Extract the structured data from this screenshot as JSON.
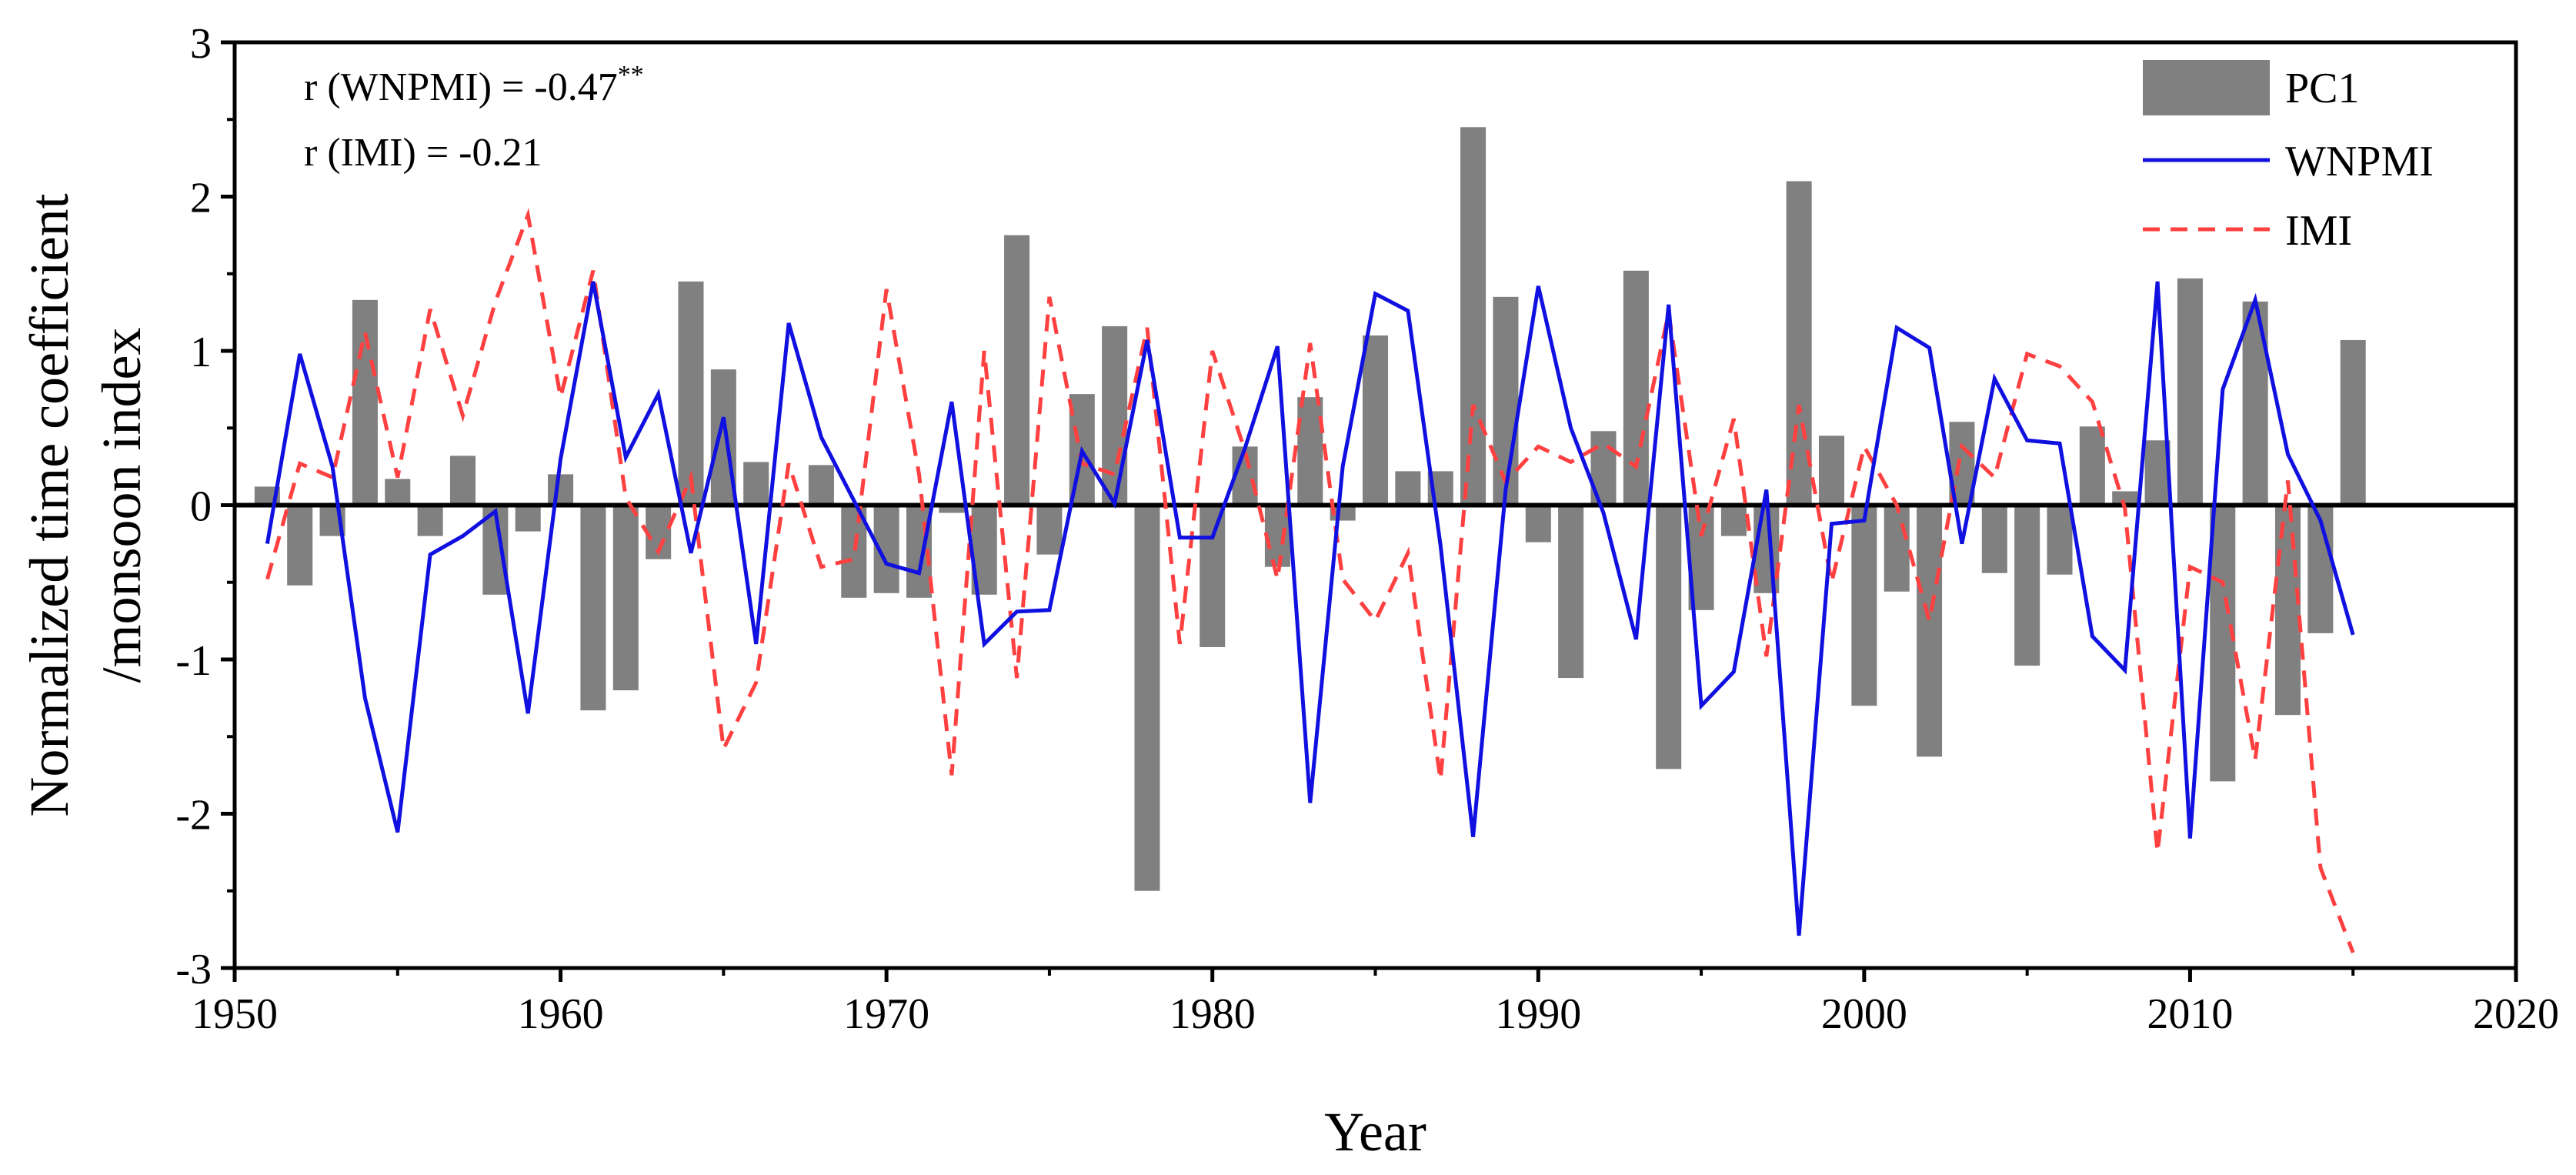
{
  "chart_data": {
    "type": "bar+line",
    "xlabel": "Year",
    "ylabel_line1": "Normalized time coefficient",
    "ylabel_line2": "/monsoon index",
    "xlim": [
      1950,
      2020
    ],
    "ylim": [
      -3,
      3
    ],
    "xticks": [
      1950,
      1960,
      1970,
      1980,
      1990,
      2000,
      2010,
      2020
    ],
    "yticks": [
      -3,
      -2,
      -1,
      0,
      1,
      2,
      3
    ],
    "annotations": [
      {
        "text": "r (WNPMI) = -0.47",
        "sup": "**"
      },
      {
        "text": "r (IMI) = -0.21",
        "sup": ""
      }
    ],
    "legend": [
      "PC1",
      "WNPMI",
      "IMI"
    ],
    "colors": {
      "PC1": "#808080",
      "WNPMI": "#1010e0",
      "IMI": "#ff4040"
    },
    "x": [
      1951,
      1952,
      1953,
      1954,
      1955,
      1956,
      1957,
      1958,
      1959,
      1960,
      1961,
      1962,
      1963,
      1964,
      1965,
      1966,
      1967,
      1968,
      1969,
      1970,
      1971,
      1972,
      1973,
      1974,
      1975,
      1976,
      1977,
      1978,
      1979,
      1980,
      1981,
      1982,
      1983,
      1984,
      1985,
      1986,
      1987,
      1988,
      1989,
      1990,
      1991,
      1992,
      1993,
      1994,
      1995,
      1996,
      1997,
      1998,
      1999,
      2000,
      2001,
      2002,
      2003,
      2004,
      2005,
      2006,
      2007,
      2008,
      2009,
      2010,
      2011,
      2012,
      2013,
      2014,
      2015
    ],
    "series": [
      {
        "name": "PC1",
        "type": "bar",
        "values": [
          0.12,
          -0.52,
          -0.2,
          1.33,
          0.17,
          -0.2,
          0.32,
          -0.58,
          -0.17,
          0.2,
          -1.33,
          -1.2,
          -0.35,
          1.45,
          0.88,
          0.28,
          0.0,
          0.26,
          -0.6,
          -0.57,
          -0.6,
          -0.05,
          -0.58,
          1.75,
          -0.32,
          0.72,
          1.16,
          -2.5,
          0.0,
          -0.92,
          0.38,
          -0.4,
          0.7,
          -0.1,
          1.1,
          0.22,
          0.22,
          2.45,
          1.35,
          -0.24,
          -1.12,
          0.48,
          1.52,
          -1.71,
          -0.68,
          -0.2,
          -0.57,
          2.1,
          0.45,
          -1.3,
          -0.56,
          -1.63,
          0.54,
          -0.44,
          -1.04,
          -0.45,
          0.51,
          0.09,
          0.42,
          1.47,
          -1.79,
          1.32,
          -1.36,
          -0.83,
          1.07
        ]
      },
      {
        "name": "WNPMI",
        "type": "line",
        "values": [
          -0.25,
          0.98,
          0.25,
          -1.25,
          -2.12,
          -0.32,
          -0.2,
          -0.04,
          -1.35,
          0.3,
          1.45,
          0.31,
          0.72,
          -0.31,
          0.57,
          -0.9,
          1.18,
          0.44,
          0.03,
          -0.38,
          -0.44,
          0.67,
          -0.9,
          -0.69,
          -0.68,
          0.35,
          0.01,
          1.07,
          -0.21,
          -0.21,
          0.37,
          1.03,
          -1.93,
          0.25,
          1.37,
          1.26,
          -0.26,
          -2.15,
          0.1,
          1.42,
          0.5,
          -0.05,
          -0.87,
          1.3,
          -1.3,
          -1.08,
          0.1,
          -2.79,
          -0.12,
          -0.1,
          1.15,
          1.02,
          -0.25,
          0.82,
          0.42,
          0.4,
          -0.85,
          -1.07,
          1.45,
          -2.16,
          0.75,
          1.33,
          0.33,
          -0.1,
          -0.84
        ]
      },
      {
        "name": "IMI",
        "type": "line",
        "values": [
          -0.48,
          0.27,
          0.18,
          1.12,
          0.18,
          1.27,
          0.58,
          1.32,
          1.88,
          0.7,
          1.52,
          0.05,
          -0.3,
          0.18,
          -1.58,
          -1.15,
          0.27,
          -0.4,
          -0.35,
          1.4,
          0.2,
          -1.75,
          1.0,
          -1.12,
          1.35,
          0.27,
          0.2,
          1.15,
          -0.9,
          1.0,
          0.35,
          -0.48,
          1.05,
          -0.48,
          -0.75,
          -0.31,
          -1.78,
          0.65,
          0.15,
          0.38,
          0.28,
          0.4,
          0.25,
          1.25,
          -0.2,
          0.56,
          -0.98,
          0.65,
          -0.5,
          0.38,
          0.0,
          -0.75,
          0.38,
          0.18,
          0.98,
          0.9,
          0.67,
          -0.02,
          -2.25,
          -0.4,
          -0.5,
          -1.65,
          0.16,
          -2.35,
          -2.9
        ]
      }
    ]
  }
}
